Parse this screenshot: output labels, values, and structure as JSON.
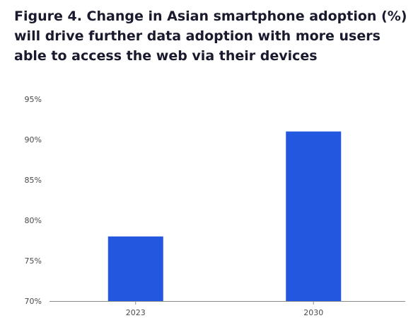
{
  "title": "Figure 4. Change in Asian smartphone adoption (%) will drive further data adoption with more users able to access the web via their devices",
  "colors": {
    "bar": "#2357e0",
    "axis": "#8a8a8a",
    "text": "#1a1a2e"
  },
  "chart_data": {
    "type": "bar",
    "categories": [
      "2023",
      "2030"
    ],
    "values": [
      78,
      91
    ],
    "ylim": [
      70,
      95
    ],
    "yticks": [
      70,
      75,
      80,
      85,
      90,
      95
    ],
    "ytick_labels": [
      "70%",
      "75%",
      "80%",
      "85%",
      "90%",
      "95%"
    ],
    "xlabel": "",
    "ylabel": "",
    "grid": false,
    "legend": "none"
  }
}
